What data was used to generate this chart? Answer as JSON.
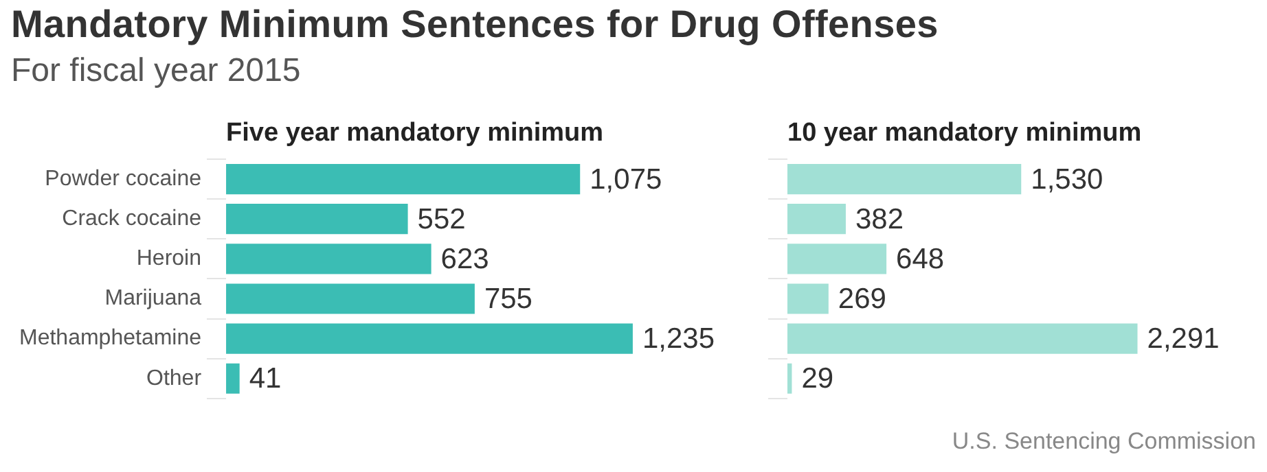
{
  "chart_data": [
    {
      "type": "other",
      "title": "Mandatory Minimum Sentences for Drug Offenses",
      "subtitle": "For fiscal year 2015"
    },
    {
      "type": "bar",
      "orientation": "horizontal",
      "title": "Five year mandatory minimum",
      "categories": [
        "Powder cocaine",
        "Crack cocaine",
        "Heroin",
        "Marijuana",
        "Methamphetamine",
        "Other"
      ],
      "values": [
        1075,
        552,
        623,
        755,
        1235,
        41
      ],
      "value_labels": [
        "1,075",
        "552",
        "623",
        "755",
        "1,235",
        "41"
      ],
      "color": "#3bbdb4",
      "grid": false,
      "legend": false
    },
    {
      "type": "bar",
      "orientation": "horizontal",
      "title": "10 year mandatory minimum",
      "categories": [
        null,
        null,
        null,
        null,
        null,
        null
      ],
      "values": [
        1530,
        382,
        648,
        269,
        2291,
        29
      ],
      "value_labels": [
        "1,530",
        "382",
        "648",
        "269",
        "2,291",
        "29"
      ],
      "color": "#a1e0d5",
      "grid": false,
      "legend": false,
      "annotations": [
        "U.S. Sentencing Commission"
      ]
    }
  ]
}
